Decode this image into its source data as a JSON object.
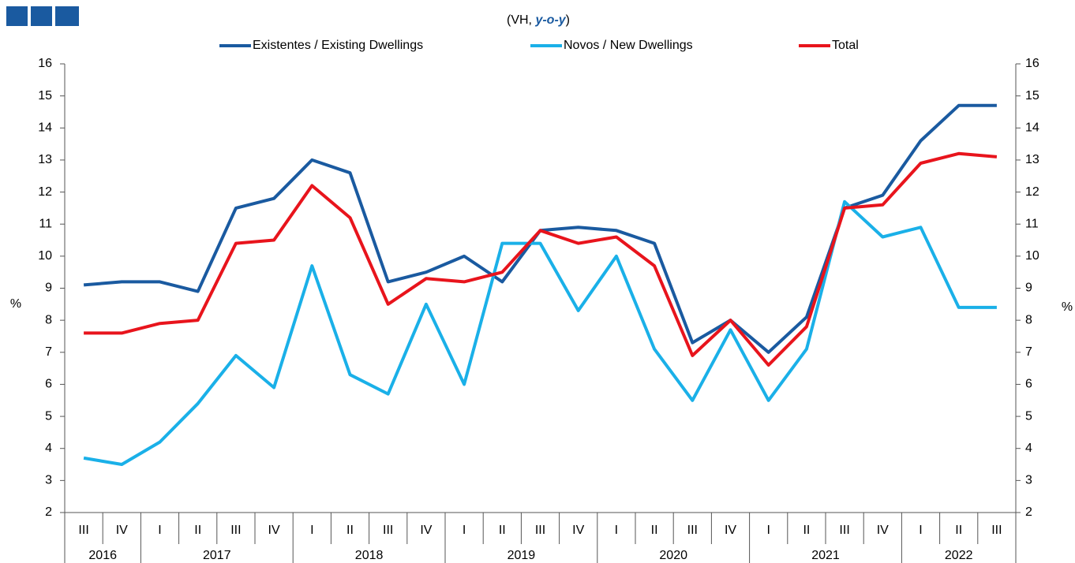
{
  "chart_data": {
    "type": "line",
    "subtitle": [
      "(VH, ",
      "y-o-y",
      ")"
    ],
    "categories": [
      "III",
      "IV",
      "I",
      "II",
      "III",
      "IV",
      "I",
      "II",
      "III",
      "IV",
      "I",
      "II",
      "III",
      "IV",
      "I",
      "II",
      "III",
      "IV",
      "I",
      "II",
      "III",
      "IV",
      "I",
      "II",
      "III"
    ],
    "years": [
      "2016",
      "2016",
      "2017",
      "2017",
      "2017",
      "2017",
      "2018",
      "2018",
      "2018",
      "2018",
      "2019",
      "2019",
      "2019",
      "2019",
      "2020",
      "2020",
      "2020",
      "2020",
      "2021",
      "2021",
      "2021",
      "2021",
      "2022",
      "2022",
      "2022"
    ],
    "series": [
      {
        "name": "Existentes / Existing Dwellings",
        "color": "#1a5aa0",
        "values": [
          9.1,
          9.2,
          9.2,
          8.9,
          11.5,
          11.8,
          13.0,
          12.6,
          9.2,
          9.5,
          10.0,
          9.2,
          10.8,
          10.9,
          10.8,
          10.4,
          7.3,
          8.0,
          7.0,
          8.1,
          11.5,
          11.9,
          13.6,
          14.7,
          14.7
        ]
      },
      {
        "name": "Novos / New Dwellings",
        "color": "#1ab0e8",
        "values": [
          3.7,
          3.5,
          4.2,
          5.4,
          6.9,
          5.9,
          9.7,
          6.3,
          5.7,
          8.5,
          6.0,
          10.4,
          10.4,
          8.3,
          10.0,
          7.1,
          5.5,
          7.7,
          5.5,
          7.1,
          11.7,
          10.6,
          10.9,
          8.4,
          8.4
        ]
      },
      {
        "name": "Total",
        "color": "#e8141c",
        "values": [
          7.6,
          7.6,
          7.9,
          8.0,
          10.4,
          10.5,
          12.2,
          11.2,
          8.5,
          9.3,
          9.2,
          9.5,
          10.8,
          10.4,
          10.6,
          9.7,
          6.9,
          8.0,
          6.6,
          7.8,
          11.5,
          11.6,
          12.9,
          13.2,
          13.1
        ]
      }
    ],
    "y_label": "%",
    "y2_label": "%",
    "ylim": [
      2,
      16
    ],
    "yticks": [
      2,
      3,
      4,
      5,
      6,
      7,
      8,
      9,
      10,
      11,
      12,
      13,
      14,
      15,
      16
    ],
    "y2lim": [
      2,
      16
    ],
    "y2ticks": [
      2,
      3,
      4,
      5,
      6,
      7,
      8,
      9,
      10,
      11,
      12,
      13,
      14,
      15,
      16
    ],
    "grid": false
  }
}
